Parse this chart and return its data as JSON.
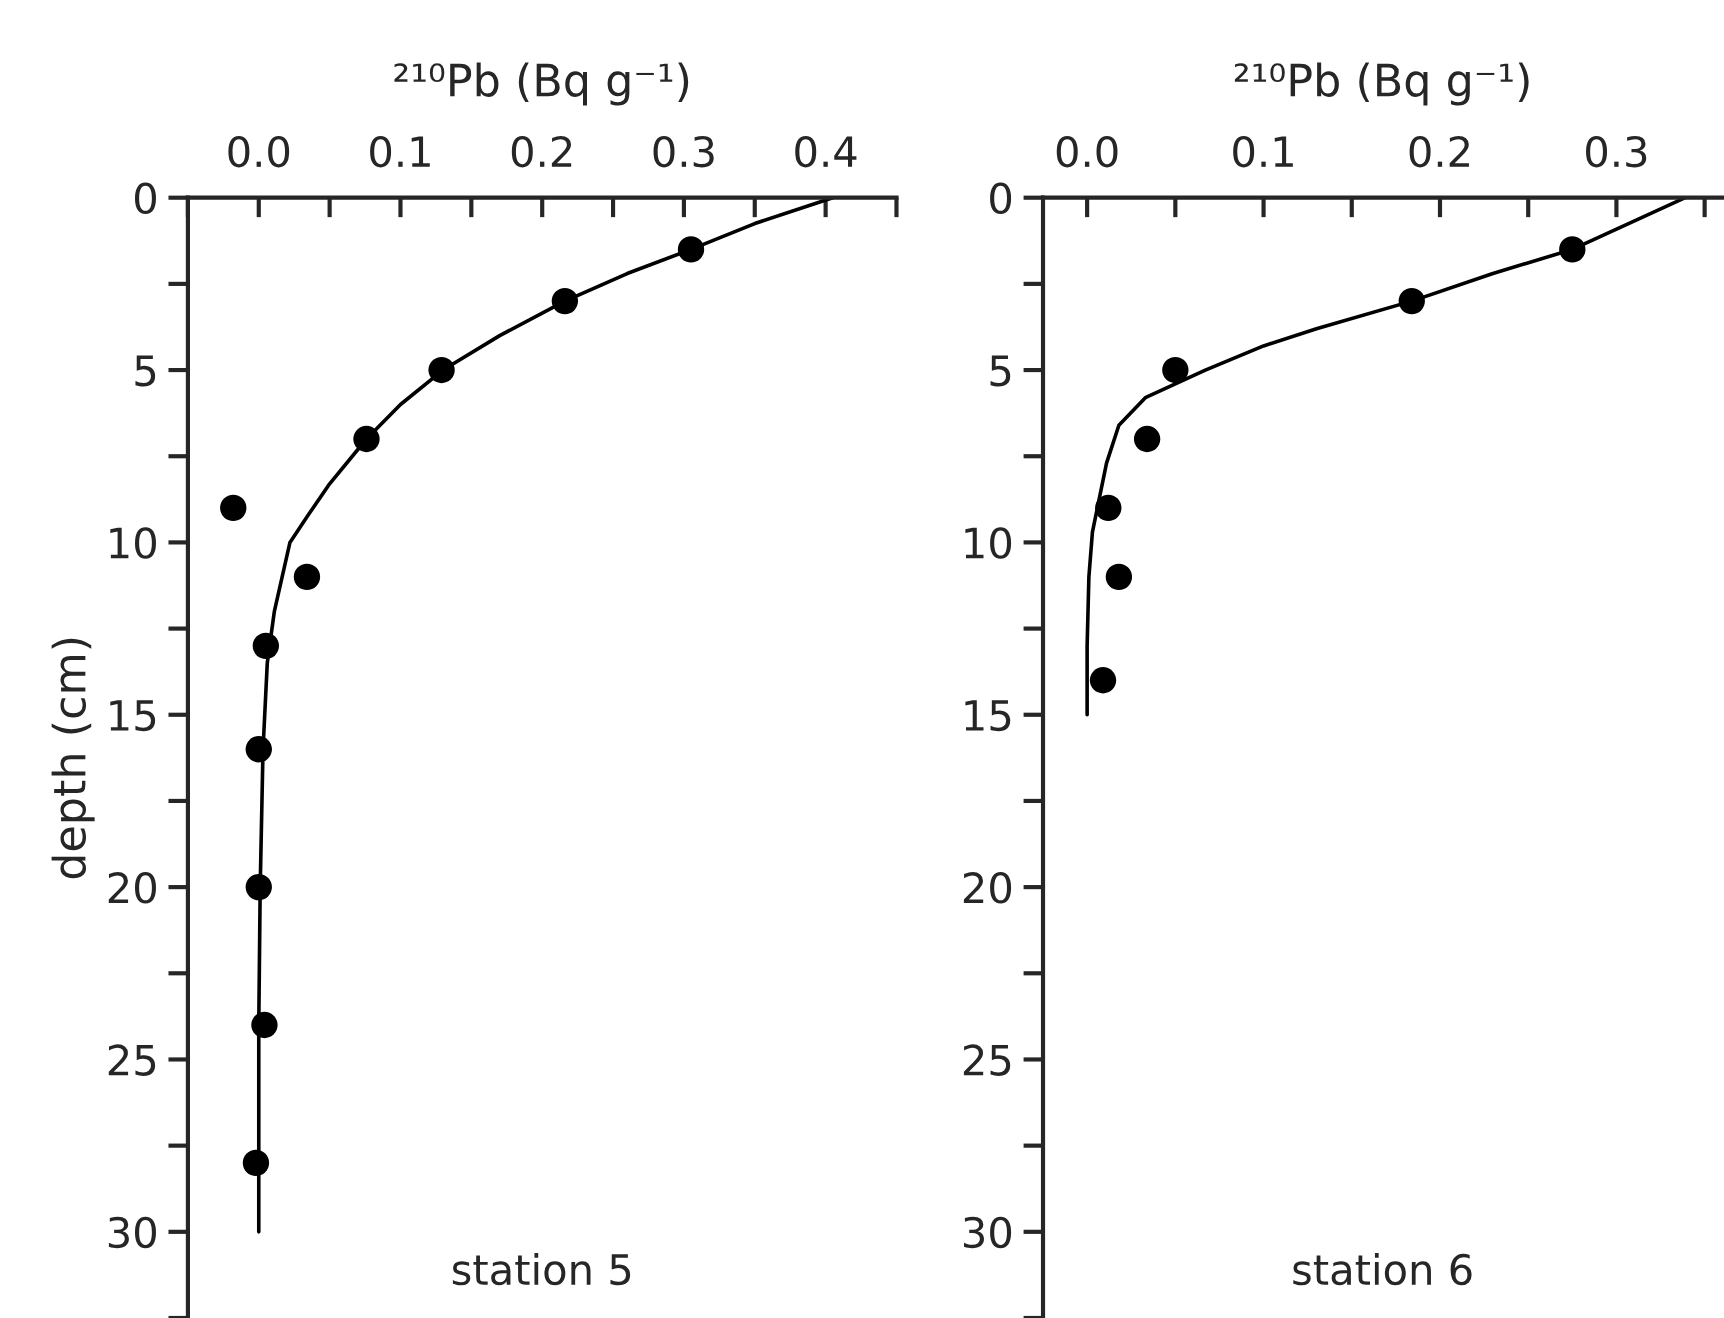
{
  "chart_data": [
    {
      "type": "scatter",
      "xlabel": "²¹⁰Pb (Bq g⁻¹)",
      "ylabel": "depth (cm)",
      "annotations": [
        "station 5"
      ],
      "marker": "circle",
      "grid": false,
      "legend": false,
      "xlim": [
        -0.05,
        0.45
      ],
      "ylim": [
        32.5,
        0
      ],
      "xticks": [
        {
          "value": -0.05,
          "label": null
        },
        {
          "value": 0,
          "label": "0.0"
        },
        {
          "value": 0.05,
          "label": null
        },
        0.1,
        {
          "value": 0.15,
          "label": null
        },
        0.2,
        {
          "value": 0.25,
          "label": null
        },
        0.3,
        {
          "value": 0.35,
          "label": null
        },
        0.4,
        {
          "value": 0.45,
          "label": null
        }
      ],
      "yticks": [
        0,
        {
          "value": 2.5,
          "label": null
        },
        5,
        {
          "value": 7.5,
          "label": null
        },
        10,
        {
          "value": 12.5,
          "label": null
        },
        15,
        {
          "value": 17.5,
          "label": null
        },
        20,
        {
          "value": 22.5,
          "label": null
        },
        25,
        {
          "value": 27.5,
          "label": null
        },
        30,
        {
          "value": 32.5,
          "label": null
        }
      ],
      "series": [
        {
          "color": "#000000",
          "x": [
            0.305,
            0.216,
            0.129,
            0.076,
            -0.018,
            0.034,
            0.005,
            0.0,
            0.0,
            0.004,
            -0.002
          ],
          "values": [
            1.5,
            3,
            5,
            7,
            9,
            11,
            13,
            16,
            20,
            24,
            28
          ]
        },
        {
          "type": "line",
          "color": "#000000",
          "marker": "none",
          "x": [
            0.405,
            0.35,
            0.305,
            0.26,
            0.216,
            0.17,
            0.13,
            0.1,
            0.076,
            0.05,
            0.035,
            0.022,
            0.011,
            0.006,
            0.003,
            0.001,
            0.0,
            0.0
          ],
          "values": [
            0,
            0.75,
            1.5,
            2.2,
            3,
            4,
            5,
            6,
            7,
            8.3,
            9.2,
            10,
            12,
            13.5,
            16,
            20,
            24,
            30
          ]
        }
      ]
    },
    {
      "type": "scatter",
      "xlabel": "²¹⁰Pb (Bq g⁻¹)",
      "annotations": [
        "station 6"
      ],
      "marker": "circle",
      "grid": false,
      "legend": false,
      "xlim": [
        -0.025,
        0.36
      ],
      "ylim": [
        32.5,
        0
      ],
      "xticks": [
        {
          "value": 0,
          "label": "0.0"
        },
        {
          "value": 0.05,
          "label": null
        },
        0.1,
        {
          "value": 0.15,
          "label": null
        },
        0.2,
        {
          "value": 0.25,
          "label": null
        },
        0.3,
        {
          "value": 0.35,
          "label": null
        }
      ],
      "yticks": [
        0,
        {
          "value": 2.5,
          "label": null
        },
        5,
        {
          "value": 7.5,
          "label": null
        },
        10,
        {
          "value": 12.5,
          "label": null
        },
        15,
        {
          "value": 17.5,
          "label": null
        },
        20,
        {
          "value": 22.5,
          "label": null
        },
        25,
        {
          "value": 27.5,
          "label": null
        },
        30,
        {
          "value": 32.5,
          "label": null
        }
      ],
      "series": [
        {
          "color": "#000000",
          "x": [
            0.275,
            0.184,
            0.05,
            0.034,
            0.012,
            0.018,
            0.009
          ],
          "values": [
            1.5,
            3,
            5,
            7,
            9,
            11,
            14
          ]
        },
        {
          "type": "line",
          "color": "#000000",
          "marker": "none",
          "x": [
            0.339,
            0.275,
            0.23,
            0.184,
            0.13,
            0.1,
            0.067,
            0.033,
            0.018,
            0.011,
            0.003,
            0.001,
            0.0,
            0.0
          ],
          "values": [
            0,
            1.5,
            2.2,
            3,
            3.8,
            4.3,
            5,
            5.8,
            6.6,
            7.7,
            9.7,
            11,
            13,
            15
          ]
        }
      ]
    }
  ]
}
